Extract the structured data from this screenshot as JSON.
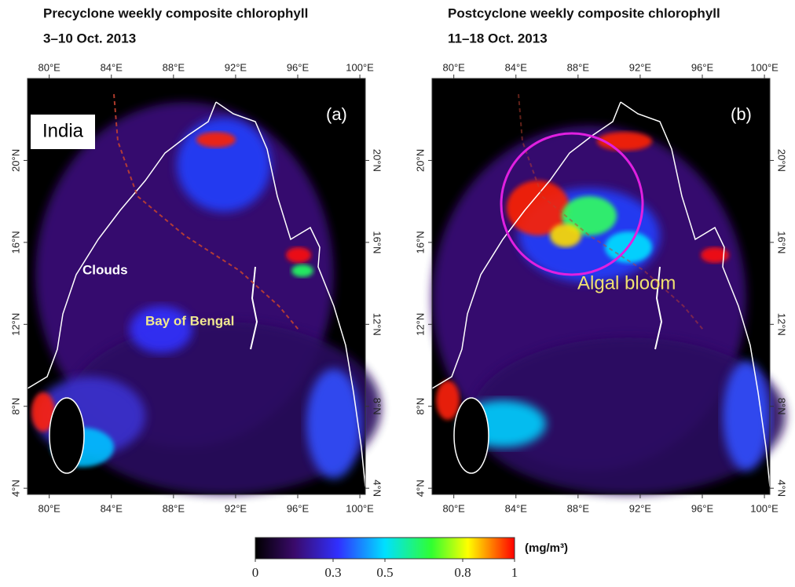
{
  "panels": [
    {
      "title": "Precyclone weekly composite chlorophyll",
      "date": "3–10 Oct. 2013",
      "label": "(a)",
      "annotations": [
        "India",
        "Clouds",
        "Bay of Bengal"
      ]
    },
    {
      "title": "Postcyclone weekly composite chlorophyll",
      "date": "11–18 Oct. 2013",
      "label": "(b)",
      "annotations": [
        "Algal bloom"
      ]
    }
  ],
  "map_axes": {
    "xlim": [
      78.6,
      100.35
    ],
    "ylim": [
      3.7,
      24
    ],
    "xticks": [
      {
        "value": 80,
        "label": "80°E"
      },
      {
        "value": 84,
        "label": "84°E"
      },
      {
        "value": 88,
        "label": "88°E"
      },
      {
        "value": 92,
        "label": "92°E"
      },
      {
        "value": 96,
        "label": "96°E"
      },
      {
        "value": 100,
        "label": "100°E"
      }
    ],
    "yticks": [
      {
        "value": 4,
        "label": "4°N"
      },
      {
        "value": 8,
        "label": "8°N"
      },
      {
        "value": 12,
        "label": "12°N"
      },
      {
        "value": 16,
        "label": "16°N"
      },
      {
        "value": 20,
        "label": "20°N"
      }
    ]
  },
  "colorbar": {
    "unit": "(mg/m³)",
    "lim": [
      0,
      1
    ],
    "ticks": [
      0,
      0.3,
      0.5,
      0.8,
      1
    ]
  }
}
